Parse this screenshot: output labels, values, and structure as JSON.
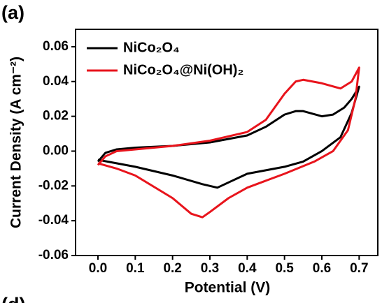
{
  "chart_data": {
    "type": "line",
    "panel_label": "(a)",
    "next_panel_label": "(d)",
    "x_label": "Potential (V)",
    "y_label": "Current Density (A cm⁻²)",
    "xlim": [
      -0.06,
      0.75
    ],
    "ylim": [
      -0.06,
      0.07
    ],
    "xticks": [
      {
        "value": 0,
        "label": "0.0"
      },
      0.1,
      0.2,
      0.3,
      0.4,
      0.5,
      0.6,
      0.7
    ],
    "yticks": [
      0.06,
      0.04,
      0.02,
      {
        "value": 0,
        "label": "0.00"
      },
      -0.02,
      -0.04,
      -0.06
    ],
    "grid": false,
    "legend": "upper left",
    "series": [
      {
        "name": "NiCo₂O₄",
        "color": "#000000",
        "x": [
          0.0,
          0.02,
          0.05,
          0.1,
          0.2,
          0.3,
          0.4,
          0.45,
          0.5,
          0.53,
          0.55,
          0.6,
          0.63,
          0.66,
          0.68,
          0.7,
          0.68,
          0.65,
          0.6,
          0.55,
          0.5,
          0.45,
          0.4,
          0.35,
          0.32,
          0.28,
          0.2,
          0.1,
          0.05,
          0.0
        ],
        "values": [
          -0.006,
          -0.001,
          0.001,
          0.002,
          0.003,
          0.005,
          0.009,
          0.014,
          0.021,
          0.023,
          0.023,
          0.02,
          0.021,
          0.025,
          0.03,
          0.037,
          0.022,
          0.008,
          0.0,
          -0.006,
          -0.009,
          -0.011,
          -0.013,
          -0.018,
          -0.021,
          -0.019,
          -0.014,
          -0.009,
          -0.007,
          -0.005
        ]
      },
      {
        "name": "NiCo₂O₄@Ni(OH)₂",
        "color": "#e8141c",
        "x": [
          0.0,
          0.02,
          0.05,
          0.1,
          0.2,
          0.3,
          0.4,
          0.45,
          0.5,
          0.53,
          0.55,
          0.6,
          0.65,
          0.68,
          0.7,
          0.69,
          0.67,
          0.63,
          0.58,
          0.5,
          0.45,
          0.4,
          0.35,
          0.3,
          0.28,
          0.25,
          0.2,
          0.1,
          0.05,
          0.0
        ],
        "values": [
          -0.008,
          -0.003,
          0.0,
          0.001,
          0.003,
          0.006,
          0.011,
          0.018,
          0.033,
          0.04,
          0.041,
          0.039,
          0.036,
          0.04,
          0.048,
          0.03,
          0.012,
          0.0,
          -0.006,
          -0.013,
          -0.017,
          -0.021,
          -0.027,
          -0.035,
          -0.038,
          -0.036,
          -0.027,
          -0.014,
          -0.01,
          -0.007
        ]
      }
    ]
  }
}
